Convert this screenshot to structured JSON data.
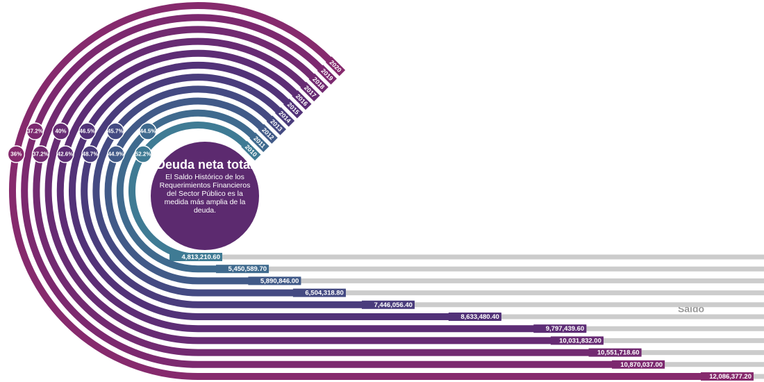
{
  "chart_data": {
    "type": "radial-bar",
    "title": "Deuda neta total",
    "subtitle": "El Saldo Histórico de los Requerimientos Financieros del Sector Público es la medida más amplia de la deuda.",
    "axis_label": "Saldo",
    "categories": [
      "2010",
      "2011",
      "2012",
      "2013",
      "2014",
      "2015",
      "2016",
      "2017",
      "2018",
      "2019",
      "2020"
    ],
    "values": [
      4813210.6,
      5450589.7,
      5890846.0,
      6504318.8,
      7446056.4,
      8633480.4,
      9797439.6,
      10031832.0,
      10551718.6,
      10870037.0,
      12086377.2
    ],
    "value_labels": [
      "4,813,210.60",
      "5,450,589.70",
      "5,890,846.00",
      "6,504,318.80",
      "7,446,056.40",
      "8,633,480.40",
      "9,797,439.60",
      "10,031,832.00",
      "10,551,718.60",
      "10,870,037.00",
      "12,086,377.20"
    ],
    "shares": [
      52.2,
      44.5,
      44.9,
      45.7,
      48.7,
      46.5,
      42.6,
      40,
      37.2,
      37.2,
      36
    ],
    "share_labels": [
      "52.2%",
      "44.5%",
      "44.9%",
      "45.7%",
      "48.7%",
      "46.5%",
      "42.6%",
      "40%",
      "37.2%",
      "37.2%",
      "36%"
    ],
    "colors": [
      "#3f7b94",
      "#3f6a8e",
      "#415a88",
      "#444a82",
      "#4a3c7c",
      "#523278",
      "#5d2d75",
      "#672b73",
      "#722a71",
      "#7c296f",
      "#862a6d"
    ],
    "track_color": "#cccccc",
    "center_color": "#5c2a6f"
  }
}
